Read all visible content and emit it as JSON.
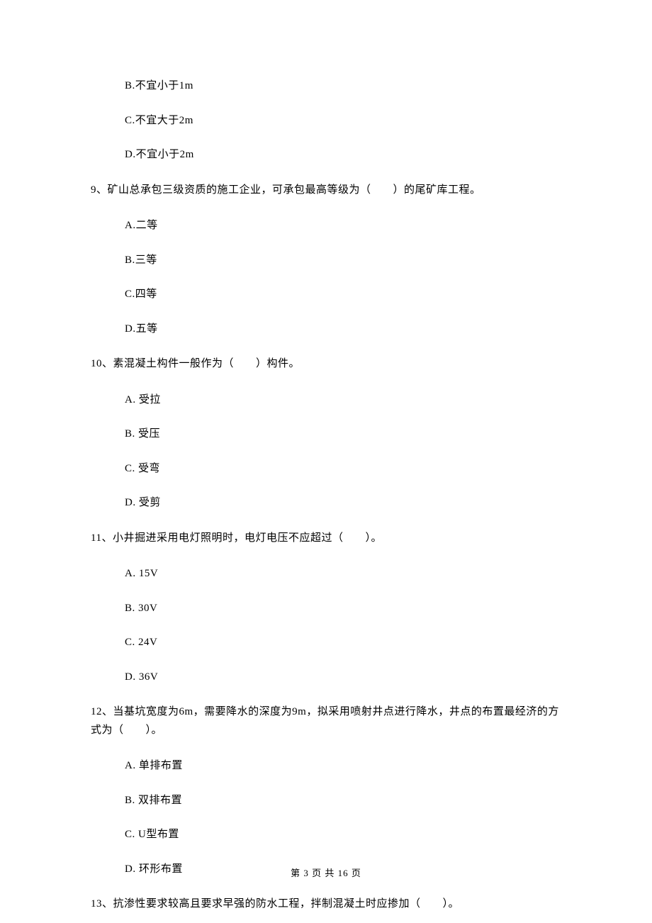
{
  "q8_remaining_options": {
    "b": "B.不宜小于1m",
    "c": "C.不宜大于2m",
    "d": "D.不宜小于2m"
  },
  "q9": {
    "text": "9、矿山总承包三级资质的施工企业，可承包最高等级为（　　）的尾矿库工程。",
    "a": "A.二等",
    "b": "B.三等",
    "c": "C.四等",
    "d": "D.五等"
  },
  "q10": {
    "text": "10、素混凝土构件一般作为（　　）构件。",
    "a": "A.  受拉",
    "b": "B.  受压",
    "c": "C.  受弯",
    "d": "D.  受剪"
  },
  "q11": {
    "text": "11、小井掘进采用电灯照明时，电灯电压不应超过（　　）。",
    "a": "A.  15V",
    "b": "B.  30V",
    "c": "C.  24V",
    "d": "D.  36V"
  },
  "q12": {
    "text": "12、当基坑宽度为6m，需要降水的深度为9m，拟采用喷射井点进行降水，井点的布置最经济的方式为（　　）。",
    "a": "A.  单排布置",
    "b": "B.  双排布置",
    "c": "C.  U型布置",
    "d": "D.  环形布置"
  },
  "q13": {
    "text": "13、抗渗性要求较高且要求早强的防水工程，拌制混凝土时应掺加（　　）。"
  },
  "footer": "第 3 页 共 16 页"
}
